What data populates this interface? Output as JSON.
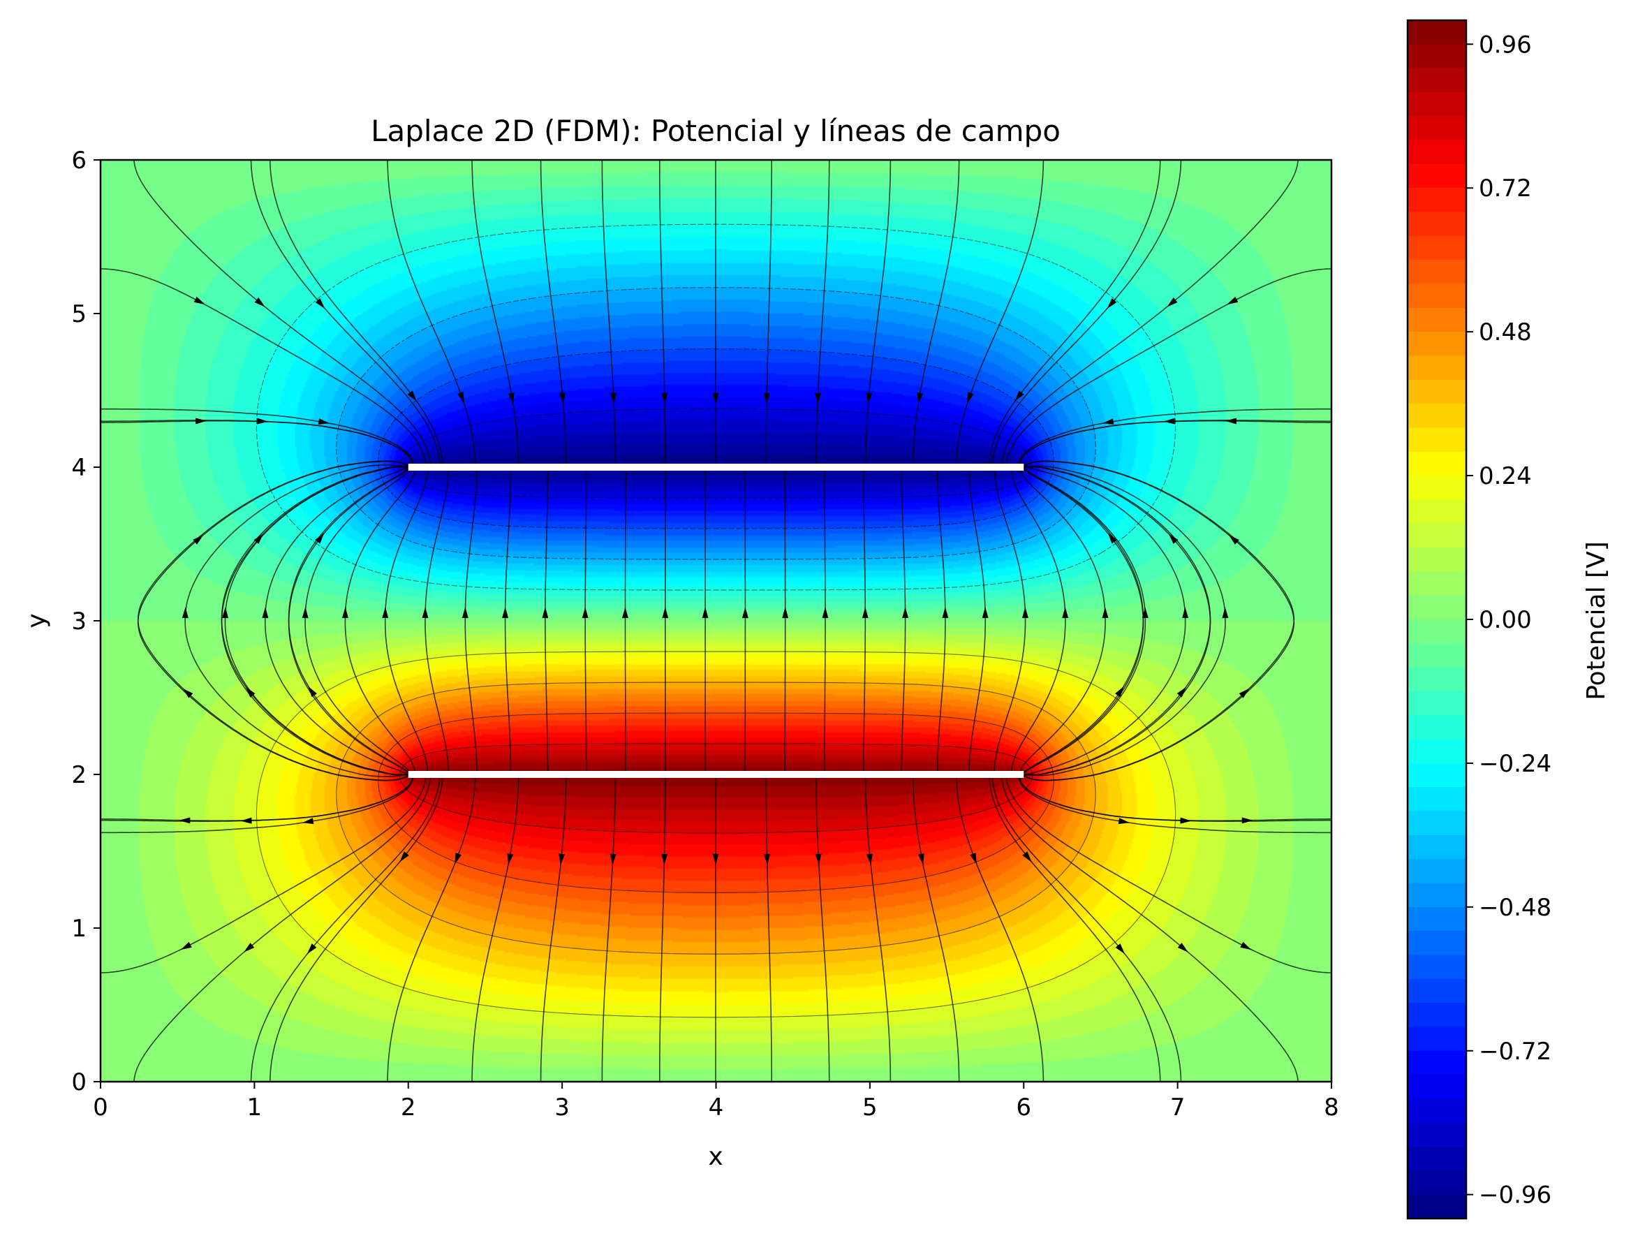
{
  "chart_data": {
    "type": "heatmap",
    "title": "Laplace 2D (FDM): Potencial y líneas de campo",
    "xlabel": "x",
    "ylabel": "y",
    "xlim": [
      0,
      8
    ],
    "ylim": [
      0,
      6
    ],
    "x_ticks": [
      "0",
      "1",
      "2",
      "3",
      "4",
      "5",
      "6",
      "7",
      "8"
    ],
    "y_ticks": [
      "0",
      "1",
      "2",
      "3",
      "4",
      "5",
      "6"
    ],
    "colormap": "jet",
    "colorbar": {
      "label": "Potencial [V]",
      "range": [
        -1.0,
        1.0
      ],
      "ticks": [
        0.96,
        0.72,
        0.48,
        0.24,
        0.0,
        -0.24,
        -0.48,
        -0.72,
        -0.96
      ],
      "tick_labels": [
        "0.96",
        "0.72",
        "0.48",
        "0.24",
        "0.00",
        "−0.24",
        "−0.48",
        "−0.72",
        "−0.96"
      ],
      "levels": 50
    },
    "plates": [
      {
        "x_start": 2,
        "x_end": 6,
        "y": 4,
        "potential": -1
      },
      {
        "x_start": 2,
        "x_end": 6,
        "y": 2,
        "potential": 1
      }
    ],
    "boundary_potential": 0,
    "field_lines": true,
    "equipotential_contours": [
      -0.8,
      -0.6,
      -0.4,
      -0.2,
      0.2,
      0.4,
      0.6,
      0.8
    ],
    "colors": {
      "plate": "#ffffff",
      "field_line": "#000000"
    }
  }
}
